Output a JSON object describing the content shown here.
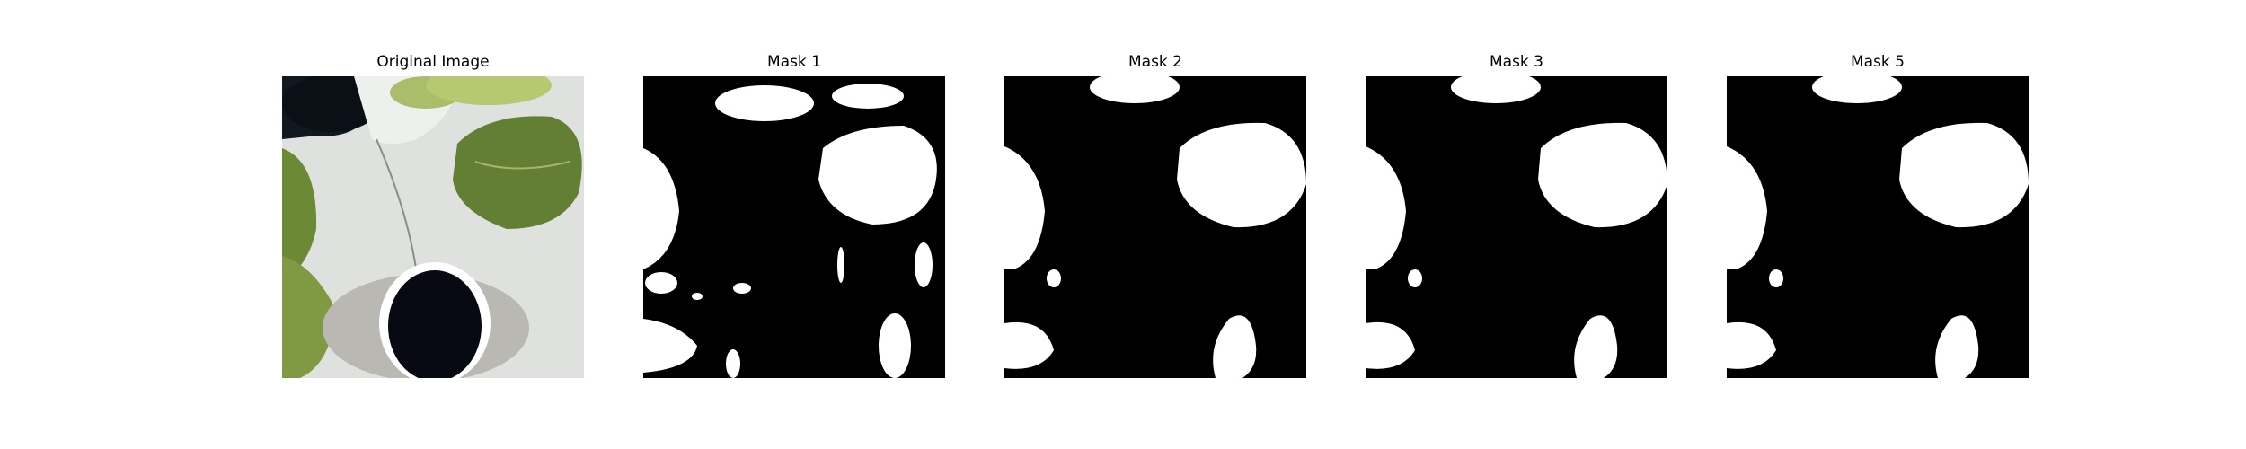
{
  "figure": {
    "panels": [
      {
        "title": "Original Image",
        "kind": "photo"
      },
      {
        "title": "Mask 1",
        "kind": "mask"
      },
      {
        "title": "Mask 2",
        "kind": "mask"
      },
      {
        "title": "Mask 3",
        "kind": "mask"
      },
      {
        "title": "Mask 5",
        "kind": "mask"
      }
    ]
  },
  "colors": {
    "mask_background": "#000000",
    "mask_foreground": "#ffffff",
    "leaf_green": "#6f8f3a",
    "planter_white": "#e4e6e4",
    "pot_gray": "#bdbcb6"
  }
}
